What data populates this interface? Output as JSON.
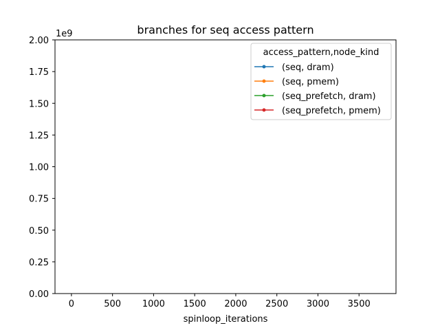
{
  "chart_data": {
    "type": "line",
    "title": "branches for seq access pattern",
    "xlabel": "spinloop_iterations",
    "ylabel": "",
    "y_offset_label": "1e9",
    "xlim": [
      -200,
      3950
    ],
    "ylim": [
      0,
      2000000000
    ],
    "x_ticks": [
      0,
      500,
      1000,
      1500,
      2000,
      2500,
      3000,
      3500
    ],
    "x_tick_labels": [
      "0",
      "500",
      "1000",
      "1500",
      "2000",
      "2500",
      "3000",
      "3500"
    ],
    "y_ticks": [
      0,
      250000000,
      500000000,
      750000000,
      1000000000,
      1250000000,
      1500000000,
      1750000000,
      2000000000
    ],
    "y_tick_labels": [
      "0.00",
      "0.25",
      "0.50",
      "0.75",
      "1.00",
      "1.25",
      "1.50",
      "1.75",
      "2.00"
    ],
    "grid": false,
    "legend": {
      "title": "access_pattern,node_kind",
      "placement": "top-right"
    },
    "series": [
      {
        "name": "(seq, dram)",
        "color": "#1f77b4",
        "x": [],
        "values": []
      },
      {
        "name": "(seq, pmem)",
        "color": "#ff7f0e",
        "x": [],
        "values": []
      },
      {
        "name": "(seq_prefetch, dram)",
        "color": "#2ca02c",
        "x": [],
        "values": []
      },
      {
        "name": "(seq_prefetch, pmem)",
        "color": "#d62728",
        "x": [],
        "values": []
      }
    ]
  }
}
